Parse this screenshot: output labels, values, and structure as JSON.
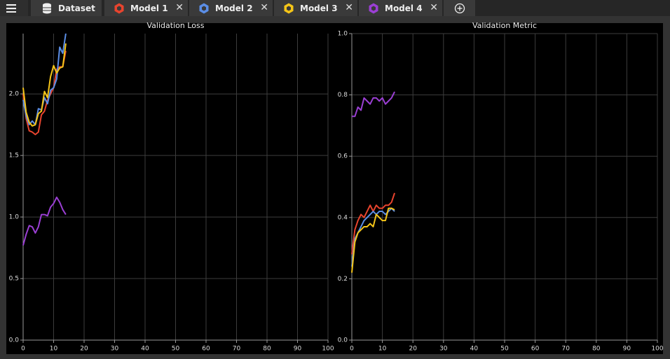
{
  "tabs": [
    {
      "label": "Dataset",
      "icon": "database",
      "closable": false
    },
    {
      "label": "Model 1",
      "icon": "hexagon",
      "color": "#e8442e",
      "closable": true
    },
    {
      "label": "Model 2",
      "icon": "hexagon",
      "color": "#5b8ee6",
      "closable": true
    },
    {
      "label": "Model 3",
      "icon": "hexagon",
      "color": "#f5c518",
      "closable": true
    },
    {
      "label": "Model 4",
      "icon": "hexagon",
      "color": "#9b3fd4",
      "closable": true
    }
  ],
  "chart_data": [
    {
      "type": "line",
      "title": "Validation Loss",
      "x": [
        0,
        1,
        2,
        3,
        4,
        5,
        6,
        7,
        8,
        9,
        10,
        11,
        12,
        13,
        14
      ],
      "series": [
        {
          "color": "#e8442e",
          "values": [
            2.0,
            1.8,
            1.7,
            1.69,
            1.67,
            1.69,
            1.83,
            1.86,
            1.95,
            2.0,
            2.05,
            2.2,
            2.22,
            2.22,
            2.35
          ]
        },
        {
          "color": "#5b8ee6",
          "values": [
            1.95,
            1.82,
            1.75,
            1.78,
            1.75,
            1.88,
            1.87,
            1.97,
            1.92,
            2.03,
            2.05,
            2.12,
            2.38,
            2.33,
            2.49
          ]
        },
        {
          "color": "#f5c518",
          "values": [
            2.05,
            1.85,
            1.77,
            1.74,
            1.75,
            1.84,
            1.86,
            2.02,
            1.97,
            2.14,
            2.23,
            2.17,
            2.21,
            2.22,
            2.41
          ]
        },
        {
          "color": "#9b3fd4",
          "values": [
            0.77,
            0.86,
            0.93,
            0.92,
            0.87,
            0.92,
            1.02,
            1.02,
            1.01,
            1.08,
            1.11,
            1.16,
            1.12,
            1.06,
            1.02
          ]
        }
      ],
      "xlim": [
        0,
        100
      ],
      "xticks": [
        0,
        10,
        20,
        30,
        40,
        50,
        60,
        70,
        80,
        90,
        100
      ],
      "ylim": [
        0,
        2.49
      ],
      "yticks": [
        {
          "value": 0,
          "label": "0.0"
        },
        0.5,
        {
          "value": 1,
          "label": "1.0"
        },
        1.5,
        {
          "value": 2,
          "label": "2.0"
        }
      ],
      "grid": true
    },
    {
      "type": "line",
      "title": "Validation Metric",
      "x": [
        0,
        1,
        2,
        3,
        4,
        5,
        6,
        7,
        8,
        9,
        10,
        11,
        12,
        13,
        14
      ],
      "series": [
        {
          "color": "#e8442e",
          "values": [
            0.28,
            0.36,
            0.39,
            0.41,
            0.4,
            0.42,
            0.44,
            0.42,
            0.44,
            0.43,
            0.43,
            0.44,
            0.44,
            0.45,
            0.48
          ]
        },
        {
          "color": "#5b8ee6",
          "values": [
            0.24,
            0.33,
            0.35,
            0.37,
            0.39,
            0.4,
            0.41,
            0.42,
            0.41,
            0.42,
            0.42,
            0.41,
            0.42,
            0.43,
            0.42
          ]
        },
        {
          "color": "#f5c518",
          "values": [
            0.22,
            0.32,
            0.35,
            0.36,
            0.37,
            0.37,
            0.38,
            0.37,
            0.41,
            0.4,
            0.39,
            0.39,
            0.43,
            0.43,
            0.425
          ]
        },
        {
          "color": "#9b3fd4",
          "values": [
            0.73,
            0.73,
            0.76,
            0.75,
            0.79,
            0.78,
            0.77,
            0.79,
            0.79,
            0.78,
            0.79,
            0.77,
            0.78,
            0.79,
            0.81
          ]
        }
      ],
      "xlim": [
        0,
        100
      ],
      "xticks": [
        0,
        10,
        20,
        30,
        40,
        50,
        60,
        70,
        80,
        90,
        100
      ],
      "ylim": [
        0,
        1
      ],
      "yticks": [
        {
          "value": 0,
          "label": "0.0"
        },
        0.2,
        0.4,
        0.6,
        0.8,
        {
          "value": 1,
          "label": "1.0"
        }
      ],
      "grid": true
    }
  ]
}
